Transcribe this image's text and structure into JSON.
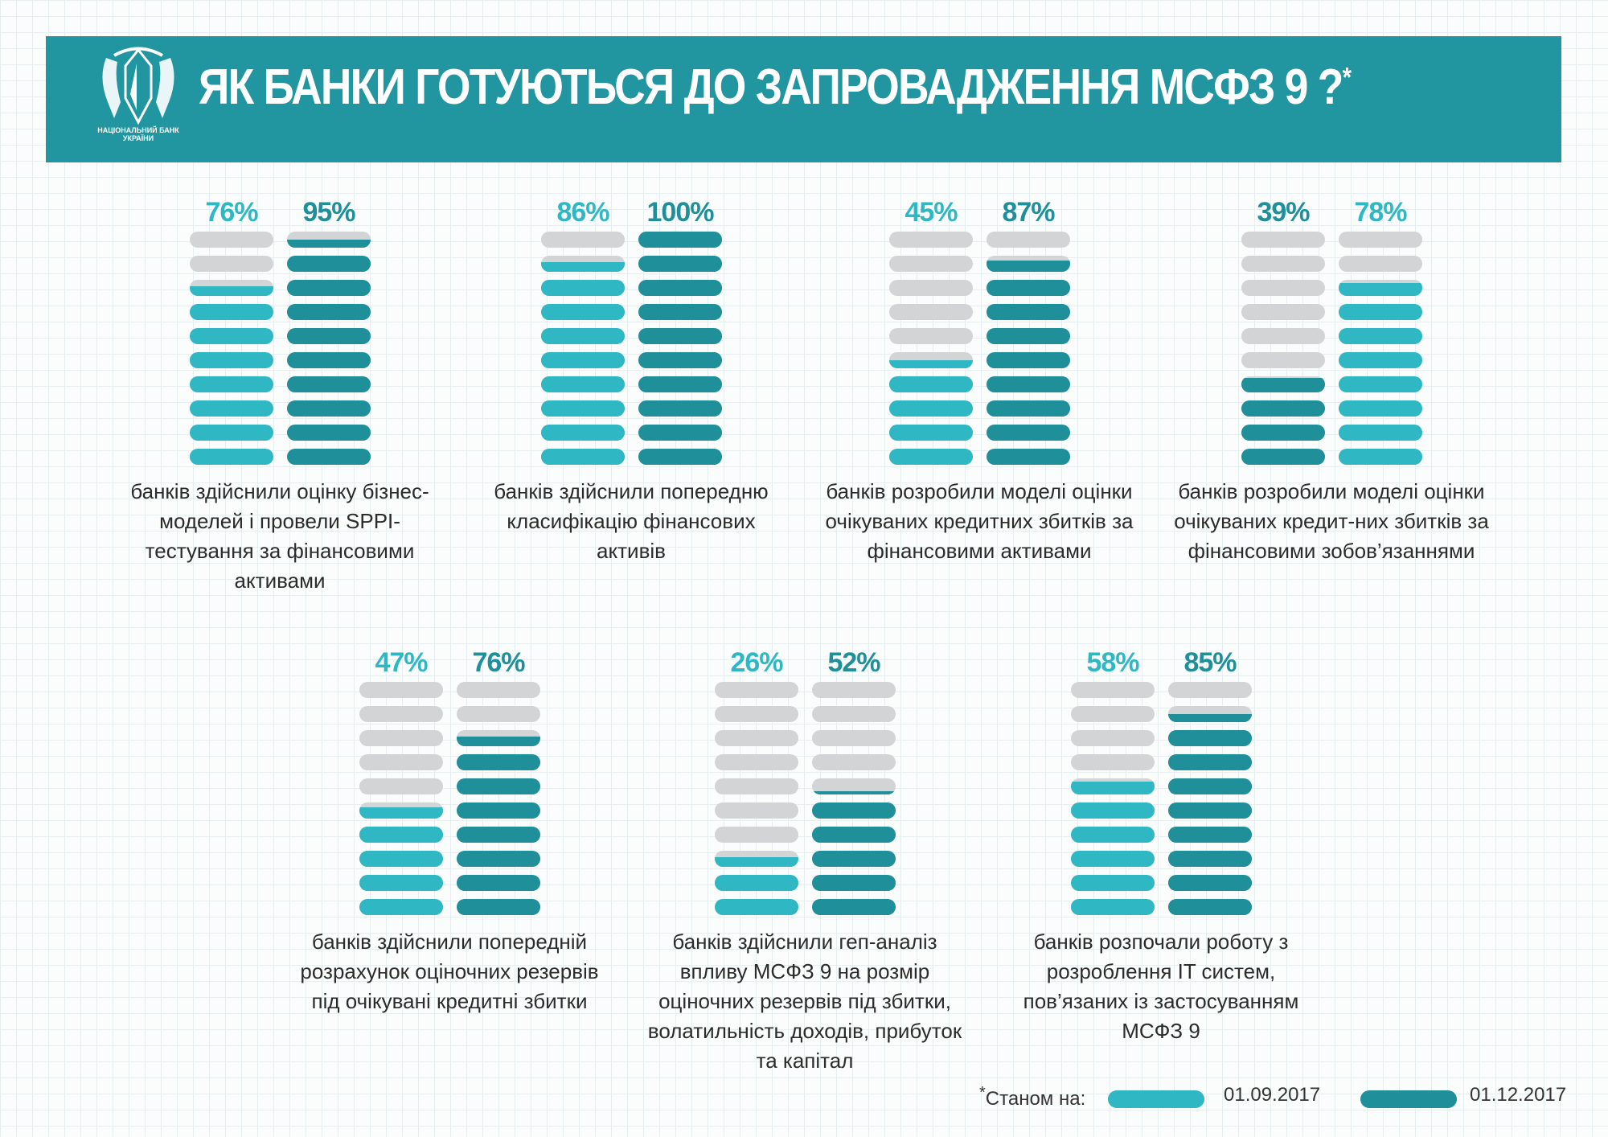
{
  "header": {
    "title": "ЯК БАНКИ ГОТУЮТЬСЯ ДО ЗАПРОВАДЖЕННЯ МСФЗ 9 ?",
    "asterisk": "*",
    "logo_text": "НАЦІОНАЛЬНИЙ БАНК УКРАЇНИ"
  },
  "colors": {
    "header": "#2195a0",
    "series1": "#2fb8c4",
    "series2": "#1f8f9a",
    "empty": "#d3d4d6"
  },
  "chart_data": {
    "type": "bar",
    "unit": "%",
    "series": [
      {
        "name": "01.09.2017",
        "color": "#2fb8c4"
      },
      {
        "name": "01.12.2017",
        "color": "#1f8f9a"
      }
    ],
    "items": [
      {
        "caption": "банків здійснили оцінку бізнес-моделей і провели SPPI-тестування за фінансовими активами",
        "values": [
          76,
          95
        ],
        "labels": [
          "76%",
          "95%"
        ]
      },
      {
        "caption": "банків здійснили попередню класифікацію фінансових активів",
        "values": [
          86,
          100
        ],
        "labels": [
          "86%",
          "100%"
        ]
      },
      {
        "caption": "банків розробили моделі оцінки очікуваних кредитних збитків за фінансовими активами",
        "values": [
          45,
          87
        ],
        "labels": [
          "45%",
          "87%"
        ]
      },
      {
        "caption": "банків розробили моделі оцінки очікуваних кредит-них збитків за фінансовими зобов’язаннями",
        "values": [
          39,
          78
        ],
        "labels": [
          "39%",
          "78%"
        ],
        "colors_swapped": true
      },
      {
        "caption": "банків здійснили попередній розрахунок оціночних резервів під очікувані кредитні збитки",
        "values": [
          47,
          76
        ],
        "labels": [
          "47%",
          "76%"
        ]
      },
      {
        "caption": "банків здійснили геп-аналіз впливу МСФЗ 9 на розмір оціночних резервів під збитки, волатильність доходів, прибуток та капітал",
        "values": [
          26,
          52
        ],
        "labels": [
          "26%",
          "52%"
        ]
      },
      {
        "caption": "банків розпочали роботу з розроблення IT систем, пов’язаних  із застосуванням МСФЗ 9",
        "values": [
          58,
          85
        ],
        "labels": [
          "58%",
          "85%"
        ]
      }
    ]
  },
  "legend": {
    "prefix": "Станом на:",
    "asterisk": "*",
    "items": [
      "01.09.2017",
      "01.12.2017"
    ]
  }
}
